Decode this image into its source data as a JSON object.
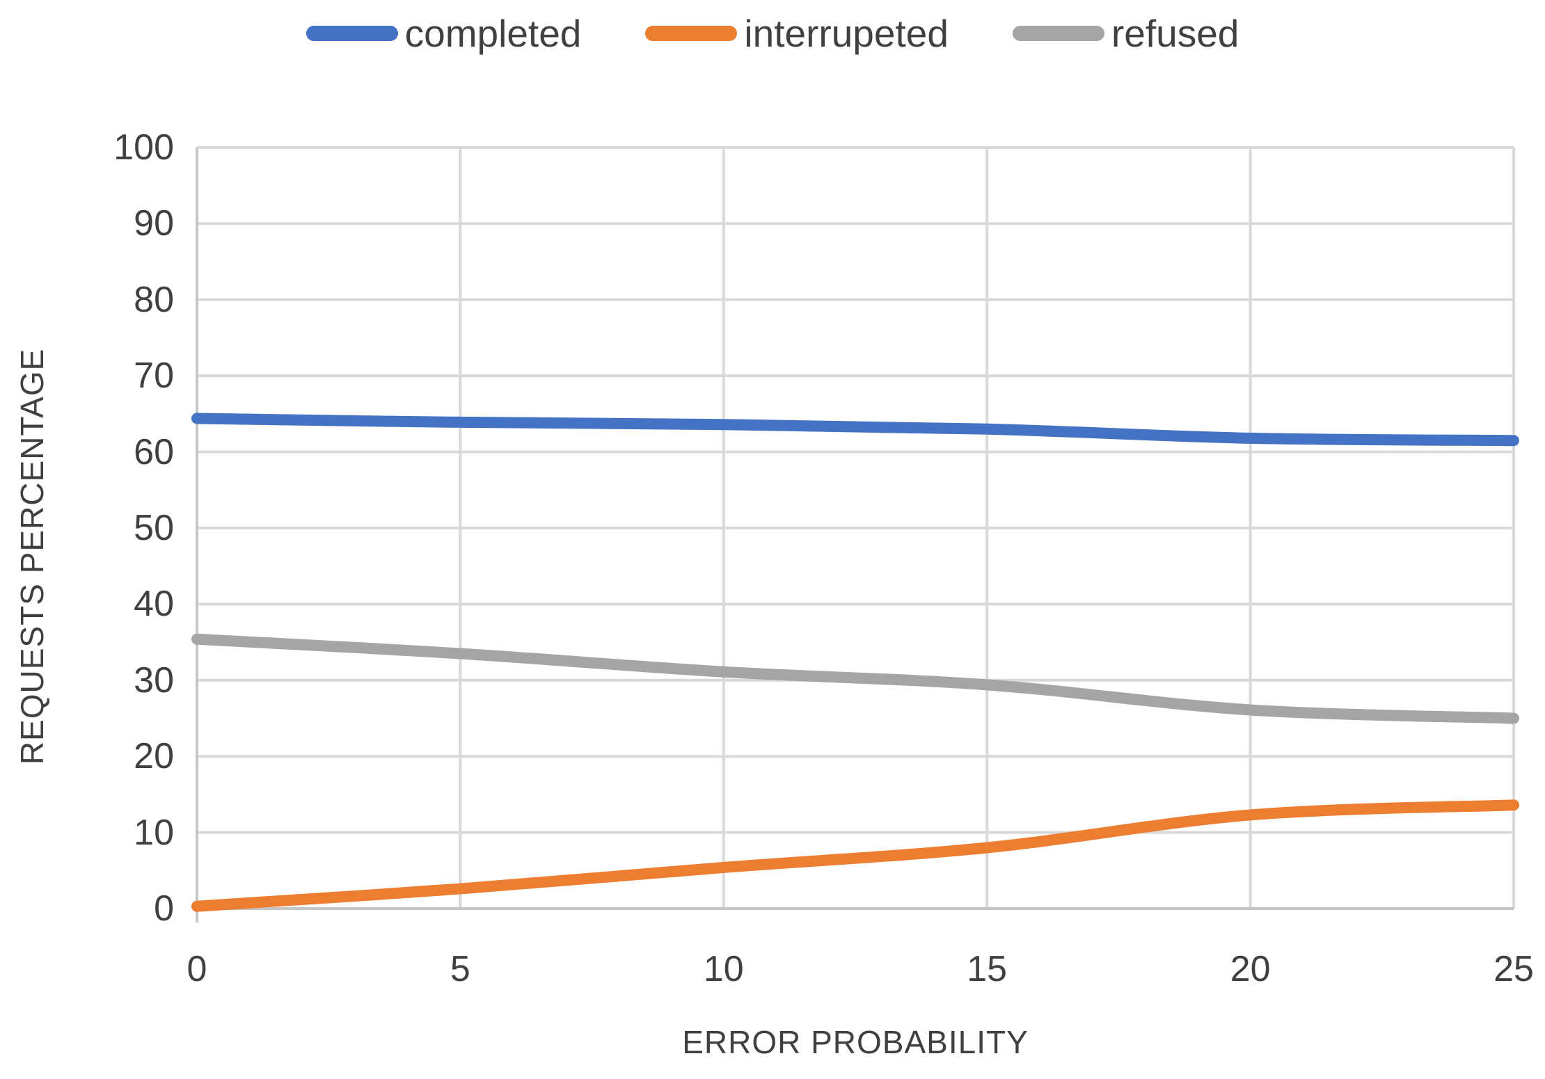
{
  "chart_data": {
    "type": "line",
    "xlabel": "ERROR PROBABILITY",
    "ylabel": "REQUESTS PERCENTAGE",
    "x": [
      0,
      5,
      10,
      15,
      20,
      25
    ],
    "xlim": [
      0,
      25
    ],
    "ylim": [
      0,
      100
    ],
    "x_tick_labels": [
      "0",
      "5",
      "10",
      "15",
      "20",
      "25"
    ],
    "y_tick_labels": [
      "0",
      "10",
      "20",
      "30",
      "40",
      "50",
      "60",
      "70",
      "80",
      "90",
      "100"
    ],
    "grid": true,
    "legend_position": "top",
    "line_style": "smooth",
    "series": [
      {
        "name": "completed",
        "color": "#4472C4",
        "values": [
          64.4,
          63.9,
          63.6,
          63.0,
          61.8,
          61.5
        ]
      },
      {
        "name": "interrupeted",
        "color": "#ED7D31",
        "values": [
          0.3,
          2.6,
          5.4,
          8.0,
          12.3,
          13.6
        ]
      },
      {
        "name": "refused",
        "color": "#A5A5A5",
        "values": [
          35.4,
          33.5,
          31.1,
          29.4,
          26.1,
          25.0
        ]
      }
    ]
  },
  "styles": {
    "grid_color": "#D9D9D9",
    "axis_color": "#C6C6C6",
    "text_color": "#404040",
    "background": "#FFFFFF"
  }
}
